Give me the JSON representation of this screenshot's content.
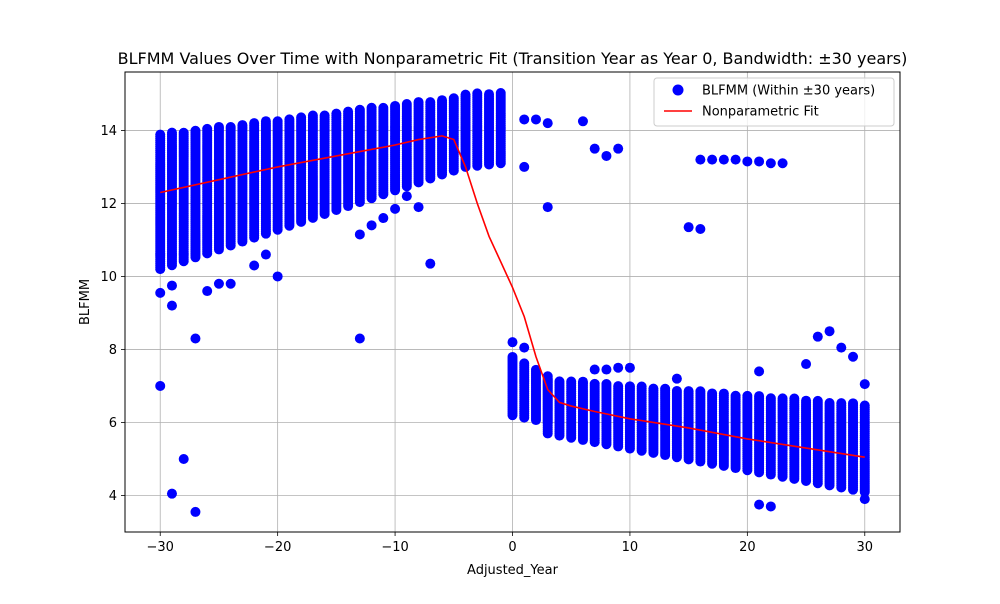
{
  "chart_data": {
    "type": "scatter",
    "title": "BLFMM Values Over Time with Nonparametric Fit (Transition Year as Year 0, Bandwidth: ±30 years)",
    "xlabel": "Adjusted_Year",
    "ylabel": "BLFMM",
    "xlim": [
      -33,
      33
    ],
    "ylim": [
      3,
      15.6
    ],
    "xticks": [
      -30,
      -20,
      -10,
      0,
      10,
      20,
      30
    ],
    "yticks": [
      4,
      6,
      8,
      10,
      12,
      14
    ],
    "grid": true,
    "legend_position": "top-right",
    "colors": {
      "scatter": "#0000ff",
      "fit": "#ff0000",
      "grid": "#b0b0b0"
    },
    "legend": [
      {
        "label": "BLFMM (Within ±30 years)",
        "kind": "marker"
      },
      {
        "label": "Nonparametric Fit",
        "kind": "line"
      }
    ],
    "density_bands": [
      {
        "x_start": -30,
        "x_end": -5,
        "low_start": 10.2,
        "low_end": 12.9,
        "high_start": 13.9,
        "high_end": 14.9
      },
      {
        "x_start": -4,
        "x_end": -1,
        "low_start": 13.0,
        "low_end": 13.1,
        "high_start": 15.0,
        "high_end": 15.05
      },
      {
        "x_start": 0,
        "x_end": 3,
        "low_start": 6.2,
        "low_end": 6.0,
        "high_start": 7.8,
        "high_end": 7.3
      },
      {
        "x_start": 3,
        "x_end": 30,
        "low_start": 5.7,
        "low_end": 4.1,
        "high_start": 7.2,
        "high_end": 6.5
      }
    ],
    "outliers": [
      [
        -30,
        7.0
      ],
      [
        -30,
        9.55
      ],
      [
        -29,
        9.2
      ],
      [
        -29,
        9.75
      ],
      [
        -29,
        4.05
      ],
      [
        -28,
        5.0
      ],
      [
        -27,
        8.3
      ],
      [
        -27,
        3.55
      ],
      [
        -26,
        9.6
      ],
      [
        -25,
        9.8
      ],
      [
        -24,
        9.8
      ],
      [
        -22,
        10.3
      ],
      [
        -21,
        10.6
      ],
      [
        -20,
        10.0
      ],
      [
        -13,
        8.3
      ],
      [
        -13,
        11.15
      ],
      [
        -12,
        11.4
      ],
      [
        -11,
        11.6
      ],
      [
        -10,
        11.85
      ],
      [
        -9,
        12.2
      ],
      [
        -8,
        11.9
      ],
      [
        -7,
        10.35
      ],
      [
        1,
        14.3
      ],
      [
        1,
        13.0
      ],
      [
        2,
        14.3
      ],
      [
        3,
        14.2
      ],
      [
        3,
        11.9
      ],
      [
        6,
        14.25
      ],
      [
        7,
        13.5
      ],
      [
        8,
        13.3
      ],
      [
        9,
        13.5
      ],
      [
        15,
        11.35
      ],
      [
        16,
        11.3
      ],
      [
        16,
        13.2
      ],
      [
        17,
        13.2
      ],
      [
        18,
        13.2
      ],
      [
        19,
        13.2
      ],
      [
        20,
        13.15
      ],
      [
        21,
        13.15
      ],
      [
        22,
        13.1
      ],
      [
        23,
        13.1
      ],
      [
        0,
        8.2
      ],
      [
        1,
        8.05
      ],
      [
        7,
        7.45
      ],
      [
        8,
        7.45
      ],
      [
        9,
        7.5
      ],
      [
        10,
        7.5
      ],
      [
        14,
        7.2
      ],
      [
        21,
        7.4
      ],
      [
        25,
        7.6
      ],
      [
        26,
        8.35
      ],
      [
        27,
        8.5
      ],
      [
        28,
        8.05
      ],
      [
        29,
        7.8
      ],
      [
        30,
        7.05
      ],
      [
        21,
        3.75
      ],
      [
        22,
        3.7
      ],
      [
        30,
        3.9
      ]
    ],
    "fit": {
      "x": [
        -30,
        -25,
        -20,
        -15,
        -10,
        -8,
        -6,
        -5,
        -4,
        -3,
        -2,
        -1,
        0,
        1,
        2,
        3,
        4,
        5,
        7,
        10,
        15,
        20,
        25,
        30
      ],
      "y": [
        12.3,
        12.65,
        13.0,
        13.3,
        13.6,
        13.75,
        13.85,
        13.75,
        13.0,
        12.0,
        11.1,
        10.4,
        9.7,
        8.9,
        7.8,
        6.9,
        6.55,
        6.45,
        6.3,
        6.1,
        5.85,
        5.55,
        5.3,
        5.05
      ]
    }
  }
}
